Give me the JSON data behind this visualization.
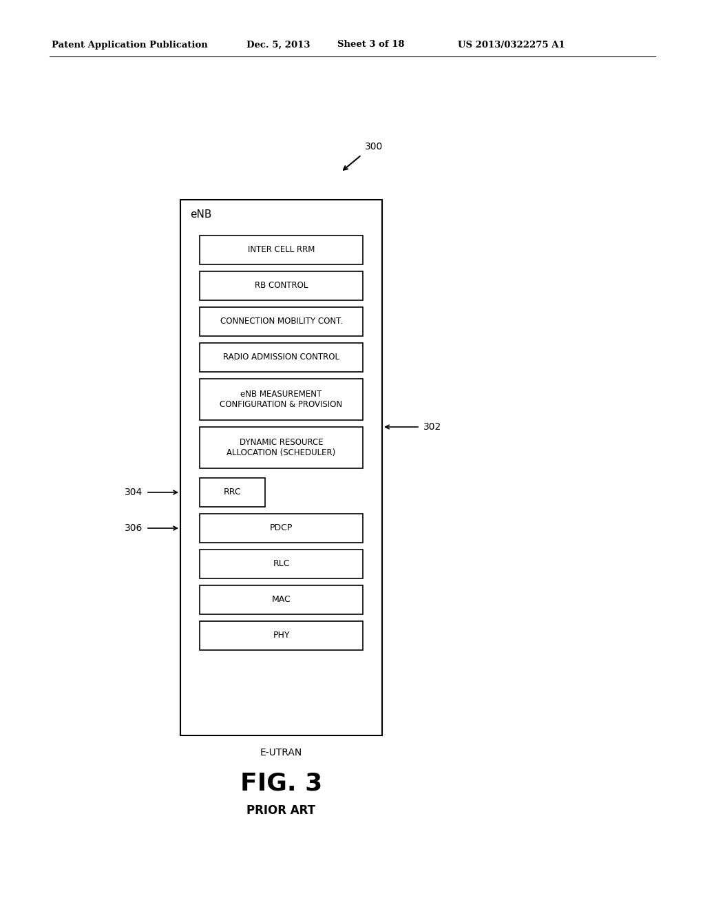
{
  "bg_color": "#ffffff",
  "header_text": "Patent Application Publication",
  "header_date": "Dec. 5, 2013",
  "header_sheet": "Sheet 3 of 18",
  "header_patent": "US 2013/0322275 A1",
  "fig_label": "FIG. 3",
  "fig_sublabel": "PRIOR ART",
  "diagram_label": "E-UTRAN",
  "outer_box_label": "eNB",
  "ref_300": "300",
  "ref_302": "302",
  "ref_304": "304",
  "ref_306": "306",
  "boxes_top": [
    "INTER CELL RRM",
    "RB CONTROL",
    "CONNECTION MOBILITY CONT.",
    "RADIO ADMISSION CONTROL",
    "eNB MEASUREMENT\nCONFIGURATION & PROVISION",
    "DYNAMIC RESOURCE\nALLOCATION (SCHEDULER)"
  ],
  "box_rrc": "RRC",
  "boxes_bottom": [
    "PDCP",
    "RLC",
    "MAC",
    "PHY"
  ]
}
